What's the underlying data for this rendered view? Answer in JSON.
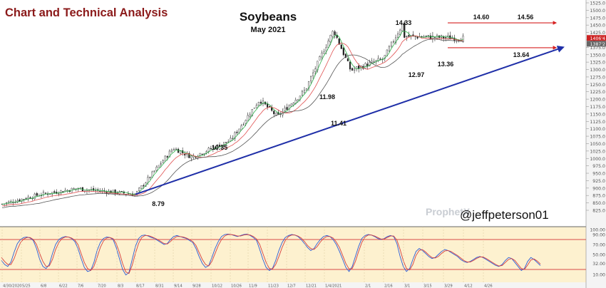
{
  "header": {
    "left_title": "Chart and Technical Analysis",
    "title": "Soybeans",
    "subtitle": "May 2021"
  },
  "watermark": {
    "handle": "@jeffpeterson01",
    "brand": "ProphetX"
  },
  "colors": {
    "left_title": "#8b1a1a",
    "candle": "#222222",
    "ma_short": "#2db24a",
    "ma_mid": "#e05050",
    "ma_long": "#555555",
    "trendline": "#1f2fa8",
    "resistance": "#d62020",
    "osc_fast": "#2a5bd7",
    "osc_slow": "#d64040",
    "osc_bg": "#fdf1cf",
    "osc_band": "#d84a4a",
    "axis_text": "#555555",
    "price_label": "#cc2222",
    "price_label_2": "#666666"
  },
  "chart_data": [
    {
      "type": "candlestick",
      "title": "Soybeans",
      "subtitle": "May 2021",
      "x_tick_labels": [
        "4/30/2020",
        "5/25",
        "6/8",
        "6/22",
        "7/6",
        "7/20",
        "8/3",
        "8/17",
        "8/31",
        "9/14",
        "9/28",
        "10/12",
        "10/26",
        "11/9",
        "11/23",
        "12/7",
        "12/21",
        "1/4/2021",
        "2/1",
        "2/16",
        "3/1",
        "3/15",
        "3/29",
        "4/12",
        "4/26"
      ],
      "ylim": [
        825,
        1525
      ],
      "y_ticks": [
        825,
        850,
        875,
        900,
        925,
        950,
        975,
        1000,
        1025,
        1050,
        1075,
        1100,
        1125,
        1150,
        1175,
        1200,
        1225,
        1250,
        1275,
        1300,
        1325,
        1350,
        1375,
        1400,
        1425,
        1450,
        1475,
        1500,
        1525
      ],
      "y_tick_labels": [
        "825.0",
        "850.0",
        "875.0",
        "900.0",
        "925.0",
        "950.0",
        "975.0",
        "1000.0",
        "1025.0",
        "1050.0",
        "1075.0",
        "1100.0",
        "1125.0",
        "1150.0",
        "1175.0",
        "1200.0",
        "1225.0",
        "1250.0",
        "1275.0",
        "1300.0",
        "1325.0",
        "1350.0",
        "1375.0",
        "1400.0",
        "1425.0",
        "1450.0",
        "1475.0",
        "1500.0",
        "1525.0"
      ],
      "last_price_labels": [
        "1406'4",
        "1387'2"
      ],
      "annotations": [
        {
          "date": "8/17",
          "label": "8.79"
        },
        {
          "date": "9/10",
          "label": "10.35"
        },
        {
          "date": "11/23",
          "label": "11.41"
        },
        {
          "date": "11/16",
          "label": "11.98"
        },
        {
          "date": "1/11/2021",
          "label": "14.33"
        },
        {
          "date": "1/25/2021",
          "label": "12.97"
        },
        {
          "date": "2/16",
          "label": "13.36"
        },
        {
          "date": "3/1",
          "label": "14.60"
        },
        {
          "date": "3/22",
          "label": "14.56"
        },
        {
          "date": "3/22",
          "label": "13.64"
        }
      ],
      "key_points": [
        {
          "date": "4/30/2020",
          "price": 846
        },
        {
          "date": "6/8",
          "price": 878
        },
        {
          "date": "7/6",
          "price": 898
        },
        {
          "date": "8/17",
          "price": 879
        },
        {
          "date": "9/14",
          "price": 1035
        },
        {
          "date": "9/28",
          "price": 1005
        },
        {
          "date": "10/26",
          "price": 1060
        },
        {
          "date": "11/16",
          "price": 1198
        },
        {
          "date": "11/30",
          "price": 1141
        },
        {
          "date": "12/21",
          "price": 1230
        },
        {
          "date": "1/4/2021",
          "price": 1370
        },
        {
          "date": "1/11/2021",
          "price": 1433
        },
        {
          "date": "1/25/2021",
          "price": 1297
        },
        {
          "date": "2/16",
          "price": 1336
        },
        {
          "date": "3/1",
          "price": 1460
        },
        {
          "date": "3/22",
          "price": 1456
        },
        {
          "date": "4/12",
          "price": 1406
        }
      ],
      "trendline": {
        "from": {
          "date": "8/17",
          "price": 879
        },
        "to": {
          "date": "4/19",
          "price": 1380
        }
      },
      "resistance": {
        "price": 1460,
        "from": "1/25/2021",
        "to": "4/19"
      },
      "support": {
        "price": 1364,
        "from": "1/25/2021",
        "to": "4/19"
      },
      "series": [
        {
          "values": [],
          "style": "short moving average"
        },
        {
          "values": [],
          "style": "medium moving average"
        },
        {
          "values": [],
          "style": "long moving average"
        }
      ]
    },
    {
      "type": "line",
      "ylim": [
        0,
        100
      ],
      "y_tick_labels": [
        "100.00",
        "90.00",
        "70.00",
        "50.00",
        "32.00",
        "10.00"
      ],
      "y_ticks": [
        100,
        90,
        70,
        50,
        32,
        10
      ],
      "bands": [
        80,
        20
      ],
      "series": [
        {
          "values": [
            38,
            30,
            26,
            35,
            55,
            72,
            80,
            84,
            85,
            83,
            78,
            62,
            40,
            26,
            22,
            30,
            52,
            70,
            80,
            84,
            86,
            85,
            82,
            76,
            62,
            42,
            24,
            16,
            18,
            34,
            58,
            74,
            82,
            85,
            84,
            80,
            64,
            42,
            20,
            9,
            14,
            40,
            66,
            82,
            88,
            89,
            87,
            84,
            82,
            78,
            74,
            70,
            72,
            80,
            86,
            88,
            86,
            84,
            82,
            78,
            74,
            62,
            46,
            32,
            24,
            28,
            44,
            62,
            76,
            86,
            90,
            91,
            90,
            88,
            86,
            88,
            90,
            91,
            88,
            84,
            78,
            60,
            40,
            24,
            18,
            22,
            38,
            58,
            74,
            84,
            88,
            90,
            89,
            86,
            80,
            72,
            64,
            58,
            62,
            72,
            80,
            86,
            88,
            86,
            80,
            70,
            56,
            40,
            24,
            16,
            26,
            46,
            66,
            82,
            88,
            90,
            89,
            86,
            82,
            80,
            82,
            86,
            88,
            86,
            72,
            46,
            26,
            16,
            22,
            40,
            56,
            62,
            58,
            52,
            46,
            42,
            44,
            50,
            56,
            60,
            58,
            54,
            50,
            46,
            40,
            36,
            34,
            36,
            40,
            44,
            46,
            44,
            40,
            36,
            32,
            28,
            26,
            30,
            38,
            44,
            42,
            34,
            26,
            18,
            22,
            36,
            44,
            40,
            34,
            28
          ]
        },
        {
          "values": [
            44,
            36,
            30,
            30,
            42,
            60,
            74,
            81,
            84,
            84,
            80,
            70,
            52,
            36,
            26,
            27,
            40,
            60,
            74,
            82,
            85,
            85,
            83,
            79,
            70,
            52,
            34,
            22,
            18,
            26,
            44,
            64,
            77,
            83,
            84,
            82,
            72,
            54,
            32,
            15,
            12,
            28,
            52,
            72,
            84,
            88,
            88,
            86,
            83,
            80,
            76,
            72,
            71,
            76,
            82,
            86,
            86,
            85,
            83,
            80,
            76,
            68,
            54,
            40,
            30,
            27,
            36,
            52,
            68,
            80,
            87,
            90,
            90,
            89,
            87,
            87,
            89,
            90,
            89,
            86,
            81,
            70,
            52,
            34,
            22,
            21,
            30,
            46,
            64,
            78,
            86,
            89,
            89,
            87,
            83,
            76,
            68,
            62,
            60,
            66,
            75,
            82,
            86,
            86,
            83,
            75,
            64,
            48,
            32,
            21,
            22,
            36,
            56,
            74,
            85,
            89,
            89,
            87,
            84,
            81,
            81,
            84,
            87,
            87,
            79,
            60,
            38,
            22,
            19,
            30,
            48,
            58,
            60,
            55,
            49,
            44,
            43,
            46,
            52,
            57,
            58,
            56,
            52,
            48,
            43,
            38,
            35,
            35,
            38,
            42,
            45,
            45,
            42,
            38,
            34,
            30,
            27,
            28,
            34,
            40,
            42,
            38,
            30,
            22,
            20,
            29,
            39,
            41,
            37,
            31
          ]
        }
      ]
    }
  ]
}
